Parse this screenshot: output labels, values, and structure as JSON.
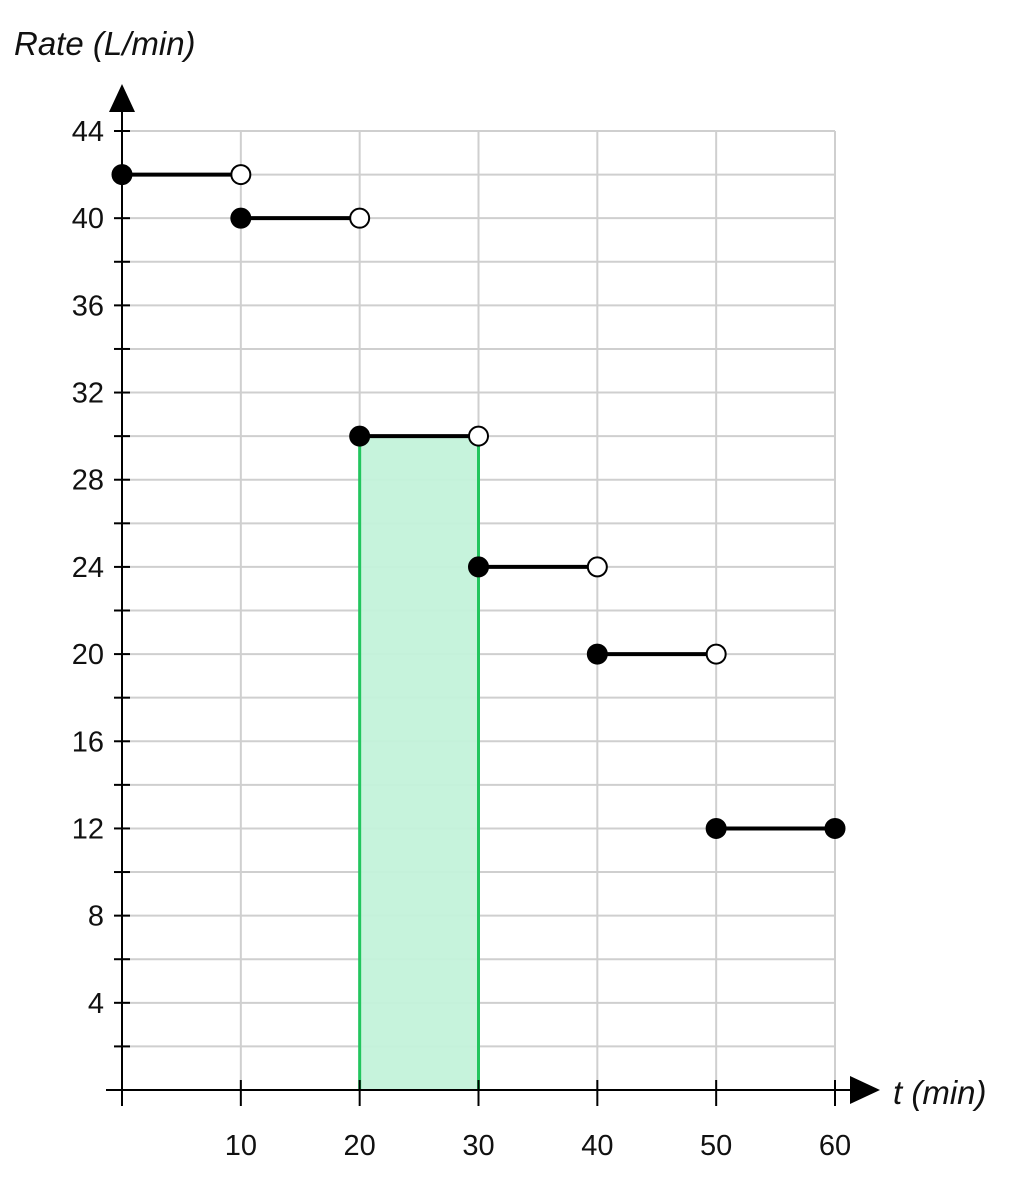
{
  "chart_data": {
    "type": "line",
    "subtype": "step-function",
    "title": "",
    "xlabel": "t (min)",
    "ylabel": "Rate (L/min)",
    "xlim": [
      0,
      60
    ],
    "ylim": [
      0,
      44
    ],
    "x_ticks": [
      10,
      20,
      30,
      40,
      50,
      60
    ],
    "y_ticks": [
      4,
      8,
      12,
      16,
      20,
      24,
      28,
      32,
      36,
      40,
      44
    ],
    "grid": true,
    "segments": [
      {
        "x_start": 0,
        "x_end": 10,
        "y": 42,
        "start_closed": true,
        "end_closed": false
      },
      {
        "x_start": 10,
        "x_end": 20,
        "y": 40,
        "start_closed": true,
        "end_closed": false
      },
      {
        "x_start": 20,
        "x_end": 30,
        "y": 30,
        "start_closed": true,
        "end_closed": false
      },
      {
        "x_start": 30,
        "x_end": 40,
        "y": 24,
        "start_closed": true,
        "end_closed": false
      },
      {
        "x_start": 40,
        "x_end": 50,
        "y": 20,
        "start_closed": true,
        "end_closed": false
      },
      {
        "x_start": 50,
        "x_end": 60,
        "y": 12,
        "start_closed": true,
        "end_closed": true
      }
    ],
    "shaded_region": {
      "x_start": 20,
      "x_end": 30,
      "y_bottom": 0,
      "y_top": 30,
      "fill": "#c3f2da",
      "stroke": "#22c55e"
    }
  }
}
